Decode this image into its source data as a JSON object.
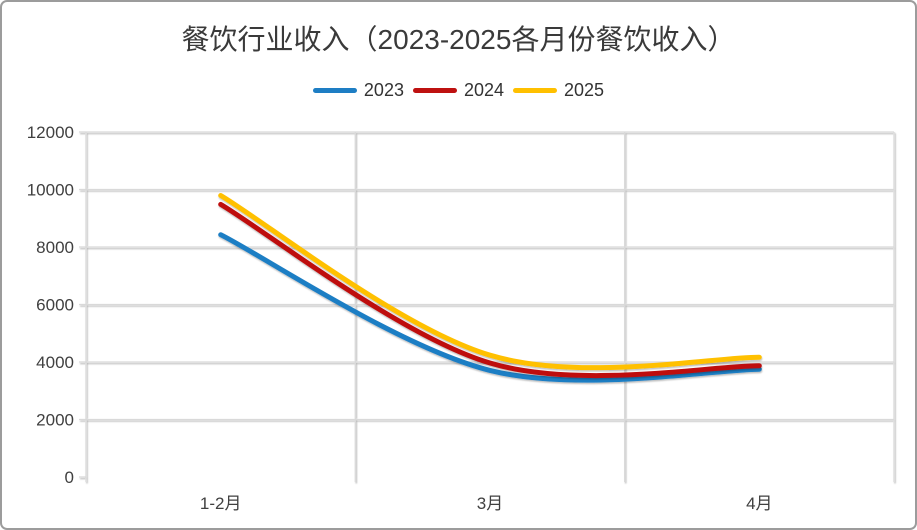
{
  "window": {
    "background": "#ffffff",
    "border_color": "#9c9c9c"
  },
  "chart_data": {
    "type": "line",
    "smooth": true,
    "title": "餐饮行业收入（2023-2025各月份餐饮收入）",
    "categories": [
      "1-2月",
      "3月",
      "4月"
    ],
    "series": [
      {
        "name": "2023",
        "color": "#1E7EC4",
        "values": [
          8429,
          3707,
          3751
        ]
      },
      {
        "name": "2024",
        "color": "#BE1110",
        "values": [
          9481,
          3964,
          3872
        ]
      },
      {
        "name": "2025",
        "color": "#FFC000",
        "values": [
          9792,
          4235,
          4167
        ]
      }
    ],
    "ylim": [
      0,
      12000
    ],
    "ytick_step": 2000,
    "ytick_labels": [
      "0",
      "2000",
      "4000",
      "6000",
      "8000",
      "10000",
      "12000"
    ],
    "grid": true,
    "legend_position": "top",
    "xlabel": "",
    "ylabel": ""
  },
  "colors": {
    "gridline": "#d9d9d9",
    "axis_line": "#707070",
    "tick_label": "#404040",
    "title_text": "#3a3a3a",
    "legend_text": "#333333"
  }
}
